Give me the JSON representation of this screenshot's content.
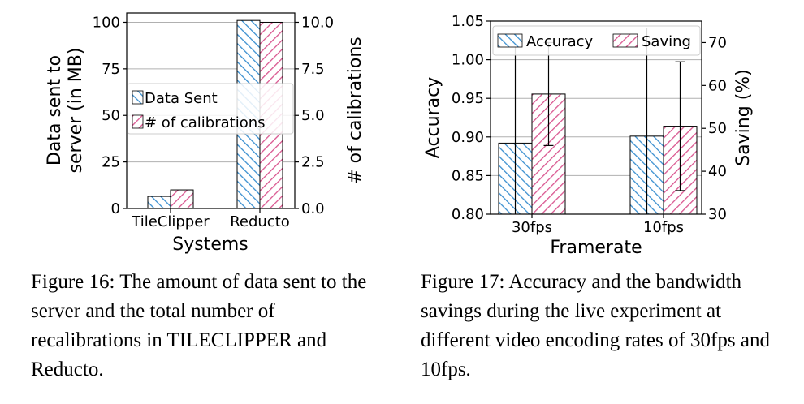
{
  "chart_data": [
    {
      "type": "bar",
      "figure": "16",
      "categories": [
        "TileClipper",
        "Reducto"
      ],
      "xlabel": "Systems",
      "ylabel": "Data sent to server (in MB)",
      "ylabel_lines": [
        "Data sent to",
        "server (in MB)"
      ],
      "y2label": "# of calibrations",
      "ylim": [
        0,
        105
      ],
      "y2lim": [
        0,
        10.5
      ],
      "yticks": [
        "0",
        "25",
        "50",
        "75",
        "100"
      ],
      "y2ticks": [
        "0.0",
        "2.5",
        "5.0",
        "7.5",
        "10.0"
      ],
      "grid": true,
      "legend_position": "center-left",
      "series": [
        {
          "name": "Data Sent",
          "axis": "left",
          "values": [
            6.5,
            101
          ],
          "color": "#3a8fd0"
        },
        {
          "name": "# of calibrations",
          "axis": "right",
          "values": [
            1,
            10
          ],
          "color": "#d9558f"
        }
      ]
    },
    {
      "type": "bar",
      "figure": "17",
      "categories": [
        "30fps",
        "10fps"
      ],
      "xlabel": "Framerate",
      "ylabel": "Accuracy",
      "y2label": "Saving (%)",
      "ylim": [
        0.8,
        1.05
      ],
      "y2lim": [
        30,
        75
      ],
      "yticks": [
        "0.80",
        "0.85",
        "0.90",
        "0.95",
        "1.00",
        "1.05"
      ],
      "y2ticks": [
        "30",
        "40",
        "50",
        "60",
        "70"
      ],
      "grid": true,
      "legend_position": "top",
      "series": [
        {
          "name": "Accuracy",
          "axis": "left",
          "values": [
            0.892,
            0.901
          ],
          "error_up": [
            0.14,
            0.14
          ],
          "error_down": [
            0.14,
            0.14
          ],
          "color": "#3a8fd0"
        },
        {
          "name": "Saving",
          "axis": "right",
          "values": [
            58,
            50.5
          ],
          "error_up": [
            12,
            15
          ],
          "error_down": [
            12,
            15
          ],
          "color": "#d9558f"
        }
      ]
    }
  ],
  "captions": {
    "fig16": {
      "before": "Figure 16: The amount of data sent to the server and the total number of recalibrations in ",
      "sc1": "T",
      "sc2": "ILE",
      "sc3": "C",
      "sc4": "LIPPER",
      "after": " and Reducto."
    },
    "fig17": "Figure 17: Accuracy and the bandwidth savings during the live experiment at different video encoding rates of 30fps and 10fps."
  }
}
